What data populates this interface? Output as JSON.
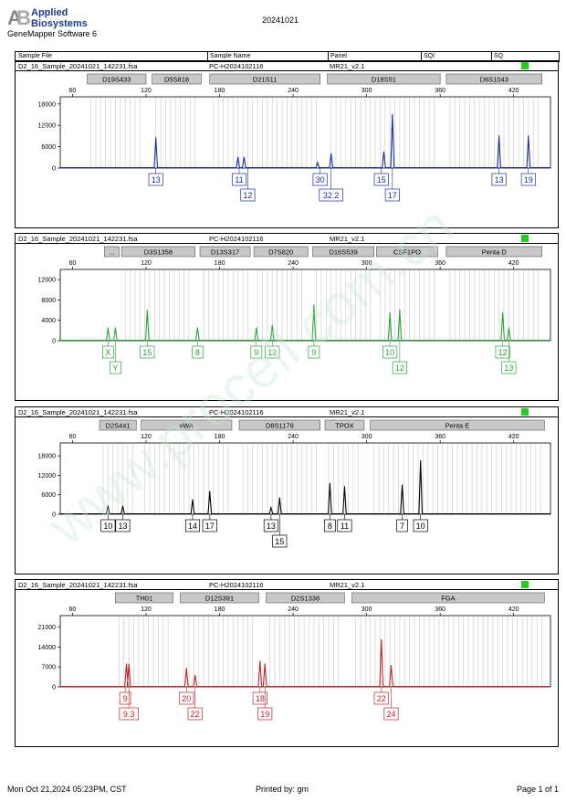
{
  "header": {
    "logo_line1": "Applied",
    "logo_line2": "Biosystems",
    "software": "GeneMapper Software 6",
    "date_title": "20241021"
  },
  "table_header": {
    "sample_file": "Sample File",
    "sample_name": "Sample Name",
    "panel": "Panel",
    "sqi": "SQI",
    "sq": "SQ"
  },
  "footer": {
    "timestamp": "Mon Oct 21,2024 05:23PM, CST",
    "printed_by": "Printed by: gm",
    "page": "Page 1 of 1"
  },
  "watermark": "www.procell.com.cn",
  "colors": {
    "blue": "#1c2e9e",
    "green": "#2aa33a",
    "black": "#000000",
    "red": "#c2222a",
    "status": "#22cc22",
    "marker_box": "#c8c8c8"
  },
  "chart_data": [
    {
      "type": "line",
      "dye": "blue",
      "file": "D2_16_Sample_20241021_142231.fsa",
      "sample": "PC-H2024102116",
      "panel": "MR21_v2.1",
      "x_ticks": [
        60,
        120,
        180,
        240,
        300,
        360,
        420
      ],
      "xlim": [
        50,
        450
      ],
      "y_ticks": [
        0,
        6000,
        12000,
        18000
      ],
      "ylim": [
        0,
        20000
      ],
      "markers": [
        {
          "name": "D19S433",
          "from": 72,
          "to": 120
        },
        {
          "name": "D5S818",
          "from": 125,
          "to": 165
        },
        {
          "name": "D21S11",
          "from": 172,
          "to": 262
        },
        {
          "name": "D18S51",
          "from": 268,
          "to": 360
        },
        {
          "name": "D6S1043",
          "from": 365,
          "to": 443
        }
      ],
      "peaks": [
        {
          "x": 128,
          "h": 8500
        },
        {
          "x": 195,
          "h": 3000
        },
        {
          "x": 200,
          "h": 3000
        },
        {
          "x": 260,
          "h": 1500
        },
        {
          "x": 271,
          "h": 4000
        },
        {
          "x": 314,
          "h": 4500
        },
        {
          "x": 321,
          "h": 15000
        },
        {
          "x": 408,
          "h": 9000
        },
        {
          "x": 432,
          "h": 9000
        }
      ],
      "labels": [
        {
          "text": "13",
          "x": 128,
          "row": 1
        },
        {
          "text": "11",
          "x": 196,
          "row": 1
        },
        {
          "text": "12",
          "x": 203,
          "row": 2
        },
        {
          "text": "30",
          "x": 262,
          "row": 1
        },
        {
          "text": "32.2",
          "x": 271,
          "row": 2
        },
        {
          "text": "15",
          "x": 312,
          "row": 1
        },
        {
          "text": "17",
          "x": 321,
          "row": 2
        },
        {
          "text": "13",
          "x": 408,
          "row": 1
        },
        {
          "text": "19",
          "x": 432,
          "row": 1
        }
      ]
    },
    {
      "type": "line",
      "dye": "green",
      "file": "D2_16_Sample_20241021_142231.fsa",
      "sample": "PC-H2024102116",
      "panel": "MR21_v2.1",
      "x_ticks": [
        60,
        120,
        180,
        240,
        300,
        360,
        420
      ],
      "xlim": [
        50,
        450
      ],
      "y_ticks": [
        0,
        4000,
        8000,
        12000
      ],
      "ylim": [
        0,
        14000
      ],
      "markers": [
        {
          "name": "...",
          "from": 86,
          "to": 98
        },
        {
          "name": "D3S1358",
          "from": 100,
          "to": 160
        },
        {
          "name": "D13S317",
          "from": 164,
          "to": 205
        },
        {
          "name": "D7S820",
          "from": 208,
          "to": 252
        },
        {
          "name": "D16S539",
          "from": 256,
          "to": 306
        },
        {
          "name": "CSF1PO",
          "from": 308,
          "to": 358
        },
        {
          "name": "Penta D",
          "from": 365,
          "to": 443
        }
      ],
      "peaks": [
        {
          "x": 89,
          "h": 2500
        },
        {
          "x": 95,
          "h": 2500
        },
        {
          "x": 121,
          "h": 6000
        },
        {
          "x": 162,
          "h": 2500
        },
        {
          "x": 210,
          "h": 2500
        },
        {
          "x": 223,
          "h": 3000
        },
        {
          "x": 257,
          "h": 7000
        },
        {
          "x": 319,
          "h": 5500
        },
        {
          "x": 327,
          "h": 6000
        },
        {
          "x": 411,
          "h": 5500
        },
        {
          "x": 416,
          "h": 2500
        }
      ],
      "labels": [
        {
          "text": "X",
          "x": 89,
          "row": 1
        },
        {
          "text": "Y",
          "x": 95,
          "row": 2
        },
        {
          "text": "15",
          "x": 121,
          "row": 1
        },
        {
          "text": "8",
          "x": 162,
          "row": 1
        },
        {
          "text": "9",
          "x": 210,
          "row": 1
        },
        {
          "text": "12",
          "x": 223,
          "row": 1
        },
        {
          "text": "9",
          "x": 257,
          "row": 1
        },
        {
          "text": "10",
          "x": 319,
          "row": 1
        },
        {
          "text": "12",
          "x": 327,
          "row": 2
        },
        {
          "text": "12",
          "x": 411,
          "row": 1
        },
        {
          "text": "13",
          "x": 416,
          "row": 2
        }
      ]
    },
    {
      "type": "line",
      "dye": "black",
      "file": "D2_16_Sample_20241021_142231.fsa",
      "sample": "PC-H2024102116",
      "panel": "MR21_v2.1",
      "x_ticks": [
        60,
        120,
        180,
        240,
        300,
        360,
        420
      ],
      "xlim": [
        50,
        450
      ],
      "y_ticks": [
        0,
        6000,
        12000,
        18000
      ],
      "ylim": [
        0,
        22000
      ],
      "markers": [
        {
          "name": "D2S441",
          "from": 82,
          "to": 112
        },
        {
          "name": "vWA",
          "from": 116,
          "to": 190
        },
        {
          "name": "D8S1179",
          "from": 196,
          "to": 262
        },
        {
          "name": "TPOX",
          "from": 266,
          "to": 298
        },
        {
          "name": "Penta E",
          "from": 303,
          "to": 445
        }
      ],
      "peaks": [
        {
          "x": 89,
          "h": 2500
        },
        {
          "x": 101,
          "h": 2500
        },
        {
          "x": 158,
          "h": 4500
        },
        {
          "x": 172,
          "h": 7000
        },
        {
          "x": 222,
          "h": 2000
        },
        {
          "x": 229,
          "h": 5000
        },
        {
          "x": 270,
          "h": 9500
        },
        {
          "x": 282,
          "h": 8500
        },
        {
          "x": 329,
          "h": 9000
        },
        {
          "x": 344,
          "h": 16500
        }
      ],
      "labels": [
        {
          "text": "10",
          "x": 89,
          "row": 1
        },
        {
          "text": "13",
          "x": 101,
          "row": 1
        },
        {
          "text": "14",
          "x": 158,
          "row": 1
        },
        {
          "text": "17",
          "x": 172,
          "row": 1
        },
        {
          "text": "13",
          "x": 222,
          "row": 1
        },
        {
          "text": "15",
          "x": 229,
          "row": 2
        },
        {
          "text": "8",
          "x": 270,
          "row": 1
        },
        {
          "text": "11",
          "x": 282,
          "row": 1
        },
        {
          "text": "7",
          "x": 329,
          "row": 1
        },
        {
          "text": "10",
          "x": 344,
          "row": 1
        }
      ]
    },
    {
      "type": "line",
      "dye": "red",
      "file": "D2_16_Sample_20241021_142231.fsa",
      "sample": "PC-H2024102116",
      "panel": "MR21_v2.1",
      "x_ticks": [
        60,
        120,
        180,
        240,
        300,
        360,
        420
      ],
      "xlim": [
        50,
        450
      ],
      "y_ticks": [
        0,
        7000,
        14000,
        21000
      ],
      "ylim": [
        0,
        25000
      ],
      "markers": [
        {
          "name": "TH01",
          "from": 95,
          "to": 142
        },
        {
          "name": "D12S391",
          "from": 148,
          "to": 212
        },
        {
          "name": "D2S1338",
          "from": 218,
          "to": 282
        },
        {
          "name": "FGA",
          "from": 288,
          "to": 445
        }
      ],
      "peaks": [
        {
          "x": 104,
          "h": 8000
        },
        {
          "x": 106,
          "h": 8000
        },
        {
          "x": 153,
          "h": 6500
        },
        {
          "x": 160,
          "h": 4000
        },
        {
          "x": 213,
          "h": 9000
        },
        {
          "x": 217,
          "h": 8000
        },
        {
          "x": 312,
          "h": 16500
        },
        {
          "x": 320,
          "h": 7500
        }
      ],
      "labels": [
        {
          "text": "9",
          "x": 103,
          "row": 1
        },
        {
          "text": "9.3",
          "x": 106,
          "row": 2
        },
        {
          "text": "20",
          "x": 153,
          "row": 1
        },
        {
          "text": "22",
          "x": 160,
          "row": 2
        },
        {
          "text": "18",
          "x": 213,
          "row": 1
        },
        {
          "text": "19",
          "x": 217,
          "row": 2
        },
        {
          "text": "22",
          "x": 312,
          "row": 1
        },
        {
          "text": "24",
          "x": 320,
          "row": 2
        }
      ]
    }
  ]
}
